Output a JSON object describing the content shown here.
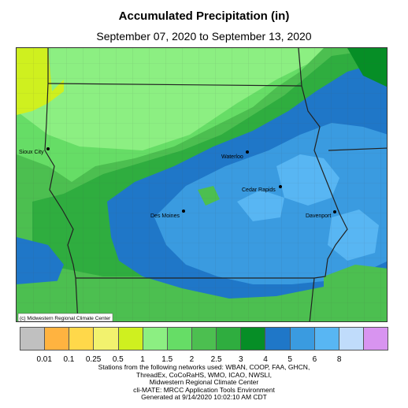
{
  "header": {
    "title": "Accumulated Precipitation (in)",
    "subtitle": "September 07, 2020 to September 13, 2020"
  },
  "map": {
    "copyright": "(c) Midwestern Regional Climate Center",
    "cities": {
      "sioux_city": "Sioux City",
      "waterloo": "Waterloo",
      "cedar_rapids": "Cedar Rapids",
      "des_moines": "Des Moines",
      "davenport": "Davenport"
    }
  },
  "legend": {
    "colors": [
      "#c0c0c0",
      "#ffb340",
      "#ffd84a",
      "#f2f26e",
      "#cff01f",
      "#8cef82",
      "#66dd66",
      "#4cbf50",
      "#2fad3f",
      "#068e26",
      "#1f77c8",
      "#3a9be0",
      "#58b6f3",
      "#c0dcfb",
      "#d894f0"
    ],
    "ticks": [
      "0.01",
      "0.1",
      "0.25",
      "0.5",
      "1",
      "1.5",
      "2",
      "2.5",
      "3",
      "4",
      "5",
      "6",
      "8"
    ]
  },
  "credits": {
    "line1": "Stations from the following networks used: WBAN, COOP, FAA, GHCN,",
    "line2": "ThreadEx, CoCoRaHS, WMO, ICAO, NWSLI,",
    "line3": "Midwestern Regional Climate Center",
    "line4": "cli-MATE: MRCC Application Tools Environment",
    "line5": "Generated at 9/14/2020 10:02:10 AM CDT"
  }
}
